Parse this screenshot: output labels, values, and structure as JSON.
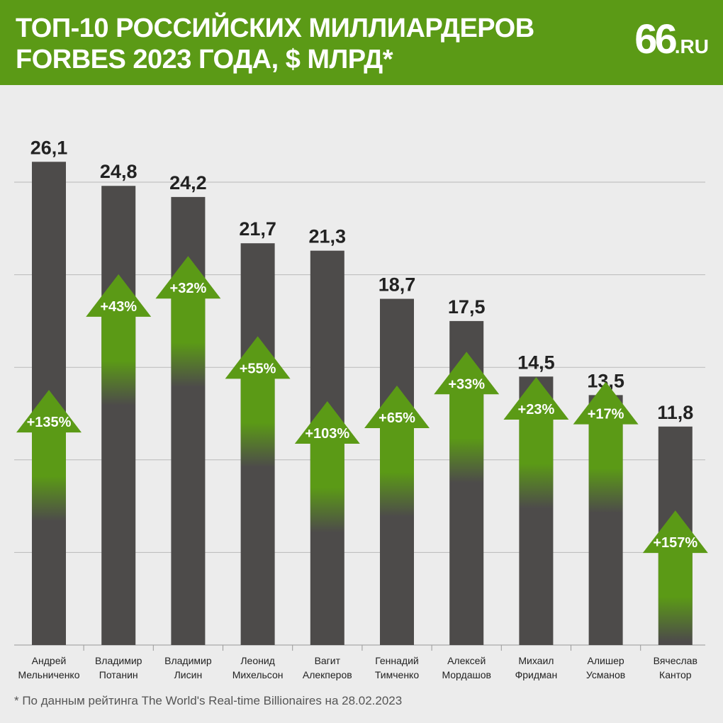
{
  "header": {
    "title_line1": "ТОП-10 РОССИЙСКИХ МИЛЛИАРДЕРОВ",
    "title_line2": "FORBES 2023 ГОДА, $ МЛРД*",
    "logo_number": "66",
    "logo_suffix": ".RU"
  },
  "footnote": "* По данным рейтинга The World's Real-time Billionaires на 28.02.2023",
  "colors": {
    "header_bg": "#5b9a16",
    "bar": "#4d4b4a",
    "arrow": "#5b9a16",
    "background": "#ececec"
  },
  "chart_data": {
    "type": "bar",
    "title": "ТОП-10 РОССИЙСКИХ МИЛЛИАРДЕРОВ FORBES 2023 ГОДА, $ МЛРД*",
    "xlabel": "",
    "ylabel": "",
    "ylim": [
      0,
      28
    ],
    "grid": true,
    "categories": [
      [
        "Андрей",
        "Мельниченко"
      ],
      [
        "Владимир",
        "Потанин"
      ],
      [
        "Владимир",
        "Лисин"
      ],
      [
        "Леонид",
        "Михельсон"
      ],
      [
        "Вагит",
        "Алекперов"
      ],
      [
        "Геннадий",
        "Тимченко"
      ],
      [
        "Алексей",
        "Мордашов"
      ],
      [
        "Михаил",
        "Фридман"
      ],
      [
        "Алишер",
        "Усманов"
      ],
      [
        "Вячеслав",
        "Кантор"
      ]
    ],
    "values": [
      26.1,
      24.8,
      24.2,
      21.7,
      21.3,
      18.7,
      17.5,
      14.5,
      13.5,
      11.8
    ],
    "value_labels": [
      "26,1",
      "24,8",
      "24,2",
      "21,7",
      "21,3",
      "18,7",
      "17,5",
      "14,5",
      "13,5",
      "11,8"
    ],
    "growth_labels": [
      "+135%",
      "+43%",
      "+32%",
      "+55%",
      "+103%",
      "+65%",
      "+33%",
      "+23%",
      "+17%",
      "+157%"
    ],
    "previous_values": [
      11.1,
      17.35,
      18.33,
      14.0,
      10.49,
      11.33,
      13.16,
      11.79,
      11.54,
      4.59
    ]
  }
}
